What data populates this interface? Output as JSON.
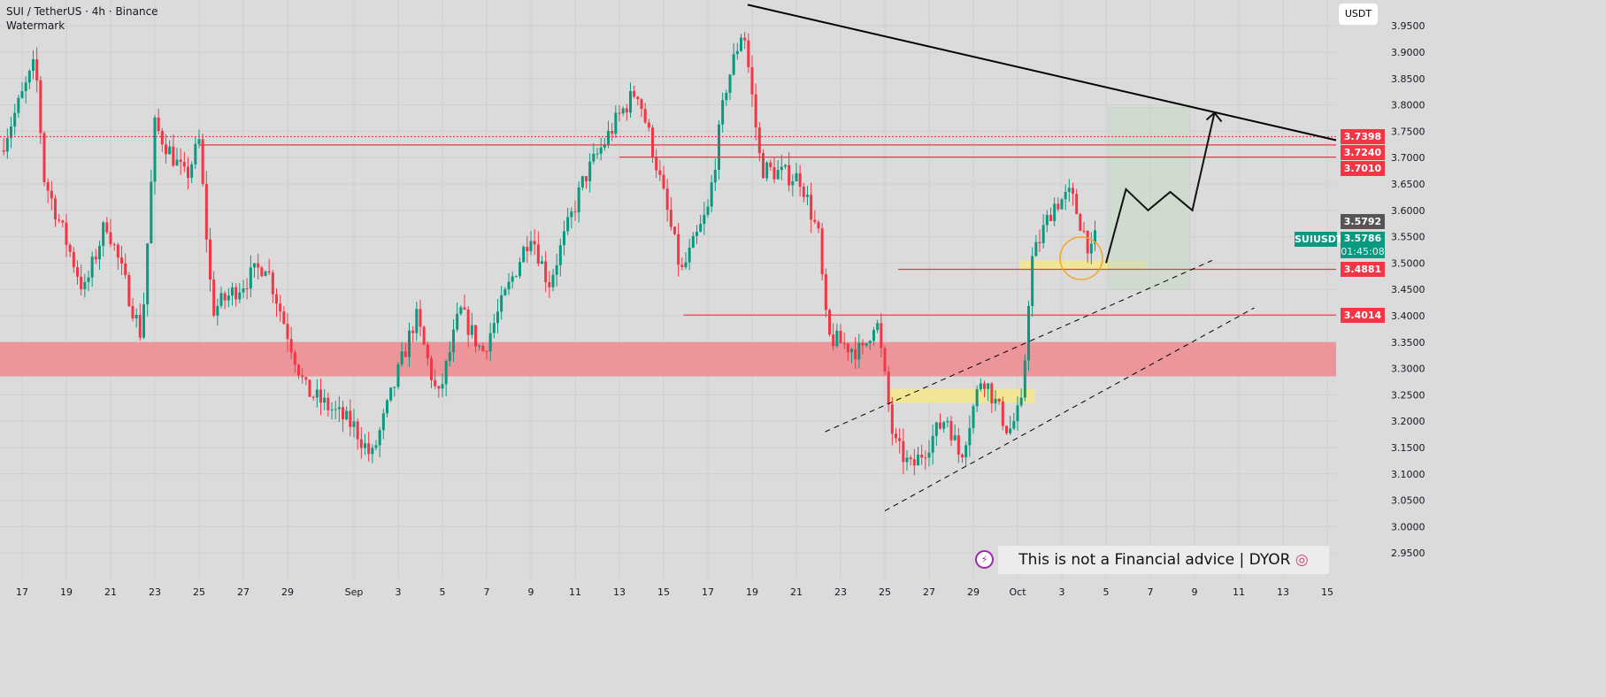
{
  "header": {
    "symbol": "SUI / TetherUS · 4h · Binance",
    "watermark": "Watermark"
  },
  "currency": "USDT",
  "note": "This is not a Financial advice | DYOR",
  "price_tags": [
    {
      "label": "3.7398",
      "color": "#f23645",
      "price": 3.7398
    },
    {
      "label": "3.7240",
      "color": "#f23645",
      "price": 3.724
    },
    {
      "label": "3.7010",
      "color": "#f23645",
      "price": 3.701
    },
    {
      "label": "3.5792",
      "color": "#555555",
      "price": 3.5792
    },
    {
      "label": "3.4881",
      "color": "#f23645",
      "price": 3.4881
    },
    {
      "label": "3.4014",
      "color": "#f23645",
      "price": 3.4014
    }
  ],
  "last": {
    "symbol": "SUIUSDT",
    "price": "3.5786",
    "countdown": "01:45:08",
    "color": "#089981"
  },
  "chart_data": {
    "type": "candlestick",
    "title": "SUI / TetherUS · 4h · Binance",
    "ylim": [
      2.92,
      3.97
    ],
    "yticks": [
      "3.9500",
      "3.9000",
      "3.8500",
      "3.8000",
      "3.7500",
      "3.7000",
      "3.6500",
      "3.6000",
      "3.5500",
      "3.5000",
      "3.4500",
      "3.4000",
      "3.3500",
      "3.3000",
      "3.2500",
      "3.2000",
      "3.1500",
      "3.1000",
      "3.0500",
      "3.0000",
      "2.9500"
    ],
    "xticks": [
      {
        "label": "17",
        "t": 0
      },
      {
        "label": "19",
        "t": 2
      },
      {
        "label": "21",
        "t": 4
      },
      {
        "label": "23",
        "t": 6
      },
      {
        "label": "25",
        "t": 8
      },
      {
        "label": "27",
        "t": 10
      },
      {
        "label": "29",
        "t": 12
      },
      {
        "label": "Sep",
        "t": 15
      },
      {
        "label": "3",
        "t": 17
      },
      {
        "label": "5",
        "t": 19
      },
      {
        "label": "7",
        "t": 21
      },
      {
        "label": "9",
        "t": 23
      },
      {
        "label": "11",
        "t": 25
      },
      {
        "label": "13",
        "t": 27
      },
      {
        "label": "15",
        "t": 29
      },
      {
        "label": "17",
        "t": 31
      },
      {
        "label": "19",
        "t": 33
      },
      {
        "label": "21",
        "t": 35
      },
      {
        "label": "23",
        "t": 37
      },
      {
        "label": "25",
        "t": 39
      },
      {
        "label": "27",
        "t": 41
      },
      {
        "label": "29",
        "t": 43
      },
      {
        "label": "Oct",
        "t": 45
      },
      {
        "label": "3",
        "t": 47
      },
      {
        "label": "5",
        "t": 49
      },
      {
        "label": "7",
        "t": 51
      },
      {
        "label": "9",
        "t": 53
      },
      {
        "label": "11",
        "t": 55
      },
      {
        "label": "13",
        "t": 57
      },
      {
        "label": "15",
        "t": 59
      }
    ],
    "path_keypoints_day_price": [
      [
        -1,
        3.714
      ],
      [
        0.6,
        3.88
      ],
      [
        1,
        3.66
      ],
      [
        2.8,
        3.445
      ],
      [
        3.8,
        3.58
      ],
      [
        5.4,
        3.36
      ],
      [
        6,
        3.76
      ],
      [
        7.4,
        3.66
      ],
      [
        8,
        3.73
      ],
      [
        8.6,
        3.41
      ],
      [
        11,
        3.5
      ],
      [
        12.8,
        3.26
      ],
      [
        15,
        3.19
      ],
      [
        15.8,
        3.13
      ],
      [
        17.8,
        3.4
      ],
      [
        18.8,
        3.24
      ],
      [
        19.8,
        3.41
      ],
      [
        20.8,
        3.33
      ],
      [
        23,
        3.56
      ],
      [
        23.8,
        3.46
      ],
      [
        25.4,
        3.66
      ],
      [
        27,
        3.78
      ],
      [
        27.8,
        3.83
      ],
      [
        28.6,
        3.7
      ],
      [
        29.8,
        3.48
      ],
      [
        31,
        3.6
      ],
      [
        31.8,
        3.83
      ],
      [
        32.6,
        3.95
      ],
      [
        33.4,
        3.68
      ],
      [
        35.2,
        3.66
      ],
      [
        36,
        3.55
      ],
      [
        36.4,
        3.36
      ],
      [
        38,
        3.33
      ],
      [
        38.6,
        3.4
      ],
      [
        39.4,
        3.16
      ],
      [
        40.2,
        3.11
      ],
      [
        41.8,
        3.21
      ],
      [
        42.4,
        3.13
      ],
      [
        43.4,
        3.29
      ],
      [
        44.6,
        3.18
      ],
      [
        45.2,
        3.23
      ],
      [
        45.6,
        3.5
      ],
      [
        46.6,
        3.61
      ],
      [
        47.4,
        3.63
      ],
      [
        48.4,
        3.51
      ],
      [
        48.6,
        3.5786
      ]
    ],
    "levels": [
      {
        "price": 3.7398,
        "from_day": -1,
        "style": "dotted"
      },
      {
        "price": 3.724,
        "from_day": 8,
        "style": "solid"
      },
      {
        "price": 3.701,
        "from_day": 27,
        "style": "solid"
      },
      {
        "price": 3.4881,
        "from_day": 39.6,
        "style": "solid"
      },
      {
        "price": 3.4014,
        "from_day": 29.9,
        "style": "solid"
      }
    ],
    "zones": [
      {
        "kind": "resistance",
        "from": 3.285,
        "to": 3.35,
        "color": "#f0858c"
      },
      {
        "kind": "demand",
        "from": 3.235,
        "to": 3.262,
        "day_from": 39.2,
        "day_to": 45.8,
        "color": "#f5e88a"
      },
      {
        "kind": "demand",
        "from": 3.487,
        "to": 3.505,
        "day_from": 45.1,
        "day_to": 50.8,
        "color": "#f5e88a"
      }
    ],
    "target_box": {
      "from_day": 49.1,
      "to_day": 52.8,
      "low": 3.45,
      "high": 3.795
    },
    "trendline": [
      [
        32.8,
        3.99
      ],
      [
        59.4,
        3.733
      ]
    ],
    "channel": [
      [
        [
          36.3,
          3.18
        ],
        [
          53.8,
          3.505
        ]
      ],
      [
        [
          39,
          3.03
        ],
        [
          55.7,
          3.415
        ]
      ]
    ],
    "projection": [
      [
        49,
        3.5
      ],
      [
        49.9,
        3.64
      ],
      [
        50.9,
        3.6
      ],
      [
        51.9,
        3.635
      ],
      [
        52.9,
        3.6
      ],
      [
        53.9,
        3.785
      ]
    ]
  }
}
